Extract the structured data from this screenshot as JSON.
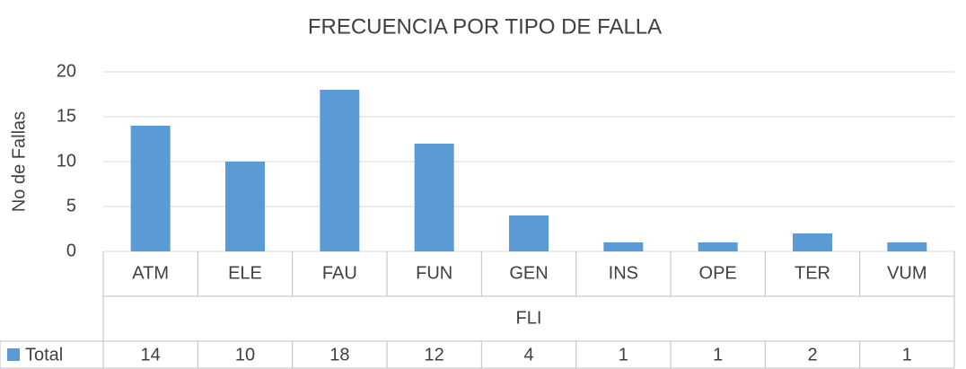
{
  "chart_data": {
    "type": "bar",
    "title": "FRECUENCIA POR TIPO DE FALLA",
    "xlabel": "FLI",
    "ylabel": "No de Fallas",
    "categories": [
      "ATM",
      "ELE",
      "FAU",
      "FUN",
      "GEN",
      "INS",
      "OPE",
      "TER",
      "VUM"
    ],
    "series": [
      {
        "name": "Total",
        "color": "#5b9bd5",
        "values": [
          14,
          10,
          18,
          12,
          4,
          1,
          1,
          2,
          1
        ]
      }
    ],
    "ylim": [
      0,
      20
    ],
    "yticks": [
      0,
      5,
      10,
      15,
      20
    ],
    "grid": true
  }
}
